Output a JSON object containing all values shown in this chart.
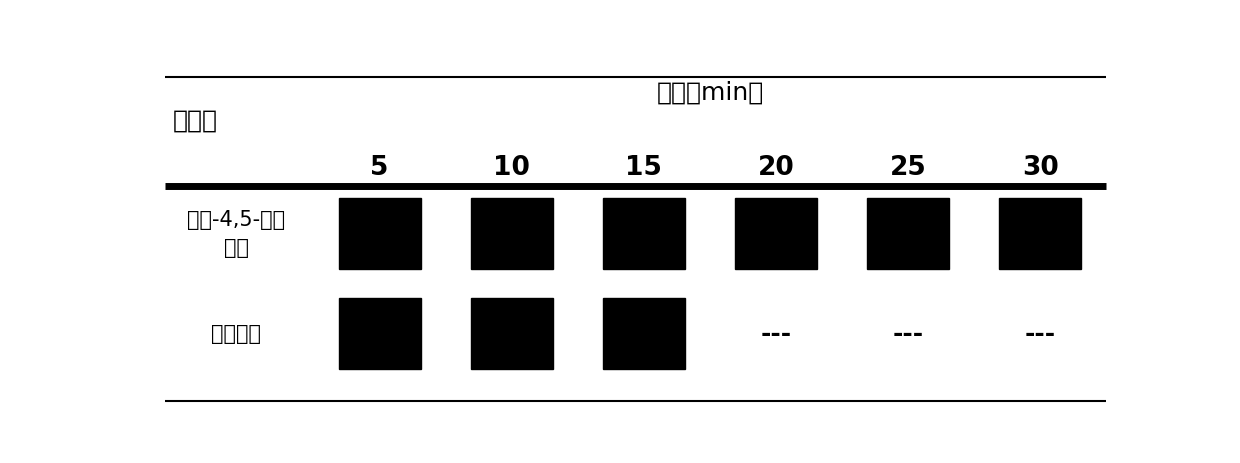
{
  "title_col": "稳定剂",
  "title_row": "时间（min）",
  "col_labels": [
    "5",
    "10",
    "15",
    "20",
    "25",
    "30"
  ],
  "row1_label": "咋唆-4,5-二罺\n酸镁",
  "row2_label": "硬脂酸锡",
  "row1_has_block": [
    true,
    true,
    true,
    true,
    true,
    true
  ],
  "row2_has_block": [
    true,
    true,
    true,
    false,
    false,
    false
  ],
  "dash_label": "---",
  "block_color": "#000000",
  "bg_color": "#ffffff",
  "border_color": "#000000",
  "figsize": [
    12.4,
    4.63
  ],
  "dpi": 100
}
